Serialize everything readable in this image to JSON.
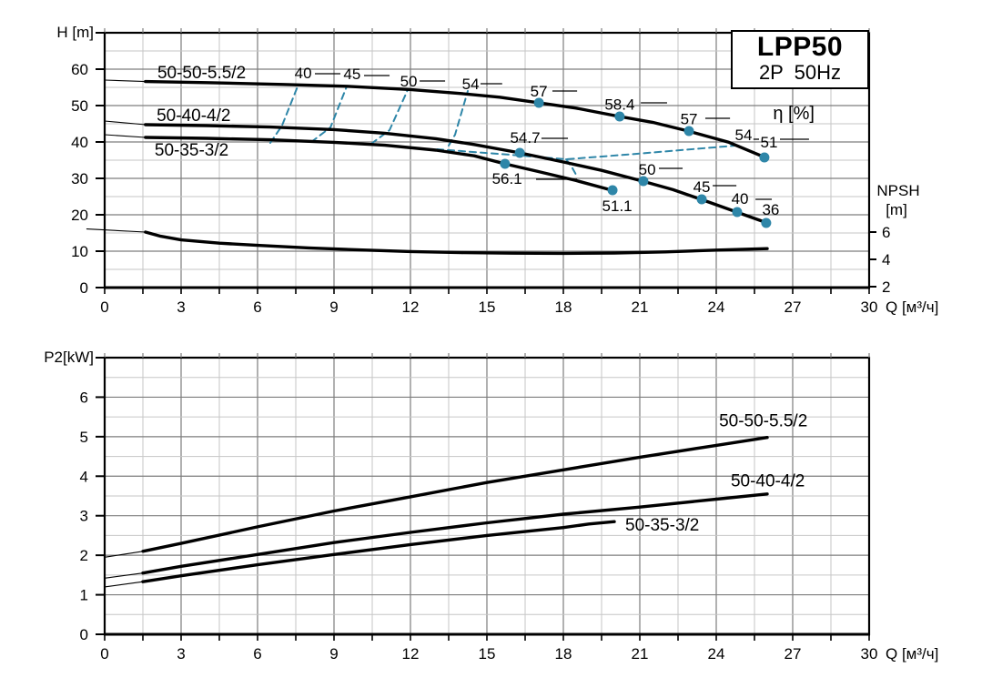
{
  "colors": {
    "accent": "#2e86a8",
    "grid_minor": "#c6c6c6",
    "grid_major": "#7d7d7d",
    "curve": "#000000"
  },
  "title_box": {
    "model": "LPP50",
    "spec": "2P  50Hz"
  },
  "chart_data": [
    {
      "type": "line",
      "name": "head-npsh-chart",
      "ylabel": "H [m]",
      "xlabel": "Q [м³/ч]",
      "xlim": [
        0,
        30
      ],
      "ylim": [
        0,
        70
      ],
      "x_major": 3,
      "x_minor": 1.5,
      "y_major": 10,
      "y_minor": 5,
      "x_tick_labels": [
        "0",
        "3",
        "6",
        "9",
        "12",
        "15",
        "18",
        "21",
        "24",
        "27",
        "30"
      ],
      "y_tick_labels": [
        "0",
        "10",
        "20",
        "30",
        "40",
        "50",
        "60"
      ],
      "grid": true,
      "series": [
        {
          "name": "50-50-5.5/2",
          "thin": [
            [
              0,
              57
            ],
            [
              1.6,
              56.6
            ]
          ],
          "points": [
            [
              1.6,
              56.6
            ],
            [
              4,
              56.3
            ],
            [
              7,
              55.8
            ],
            [
              9.5,
              55.3
            ],
            [
              12,
              54.4
            ],
            [
              14,
              53.3
            ],
            [
              15.5,
              52.3
            ],
            [
              17,
              50.8
            ],
            [
              18.5,
              49.3
            ],
            [
              20.2,
              47
            ],
            [
              21.5,
              45.4
            ],
            [
              22.9,
              43
            ],
            [
              24.5,
              39.9
            ],
            [
              25.9,
              35.8
            ]
          ]
        },
        {
          "name": "50-40-4/2",
          "thin": [
            [
              0,
              45.75
            ],
            [
              1.6,
              44.75
            ]
          ],
          "points": [
            [
              1.6,
              44.75
            ],
            [
              4,
              44.5
            ],
            [
              6.5,
              44.1
            ],
            [
              9,
              43.4
            ],
            [
              11,
              42.4
            ],
            [
              13,
              40.9
            ],
            [
              14.5,
              39.3
            ],
            [
              16.3,
              37
            ],
            [
              18,
              34.5
            ],
            [
              19.5,
              32.2
            ],
            [
              21.1,
              29.25
            ],
            [
              22.3,
              26.9
            ],
            [
              23.4,
              24.25
            ],
            [
              24.8,
              20.75
            ],
            [
              26,
              17.75
            ]
          ]
        },
        {
          "name": "50-35-3/2",
          "thin": [
            [
              0,
              42
            ],
            [
              1.6,
              41.25
            ]
          ],
          "points": [
            [
              1.6,
              41.25
            ],
            [
              4,
              41
            ],
            [
              6.5,
              40.6
            ],
            [
              9,
              39.9
            ],
            [
              11,
              39.1
            ],
            [
              13,
              37.75
            ],
            [
              14.5,
              36.2
            ],
            [
              15.7,
              34
            ],
            [
              17,
              31.9
            ],
            [
              18.5,
              29.4
            ],
            [
              19.9,
              26.75
            ]
          ]
        },
        {
          "name": "NPSH",
          "thin": [
            [
              -0.7,
              16.1
            ],
            [
              1.6,
              15.25
            ]
          ],
          "points": [
            [
              1.6,
              15.25
            ],
            [
              2.2,
              14.1
            ],
            [
              3,
              13.1
            ],
            [
              4.5,
              12.2
            ],
            [
              6,
              11.6
            ],
            [
              8,
              10.9
            ],
            [
              10,
              10.35
            ],
            [
              12,
              9.9
            ],
            [
              14,
              9.6
            ],
            [
              16,
              9.45
            ],
            [
              18,
              9.4
            ],
            [
              20,
              9.5
            ],
            [
              22,
              9.8
            ],
            [
              24,
              10.3
            ],
            [
              26,
              10.7
            ]
          ]
        }
      ],
      "series_labels": [
        {
          "text": "50-50-5.5/2",
          "q": 2.07,
          "v": 59.25
        },
        {
          "text": "50-40-4/2",
          "q": 2.04,
          "v": 47.5
        },
        {
          "text": "50-35-3/2",
          "q": 1.96,
          "v": 38
        }
      ],
      "efficiency": {
        "dots": [
          {
            "q": 17.04,
            "v": 50.75
          },
          {
            "q": 20.21,
            "v": 47
          },
          {
            "q": 22.93,
            "v": 43
          },
          {
            "q": 25.89,
            "v": 35.75
          },
          {
            "q": 16.29,
            "v": 37
          },
          {
            "q": 21.14,
            "v": 29.25
          },
          {
            "q": 23.43,
            "v": 24.25
          },
          {
            "q": 24.82,
            "v": 20.75
          },
          {
            "q": 25.96,
            "v": 17.75
          },
          {
            "q": 15.71,
            "v": 34
          },
          {
            "q": 19.93,
            "v": 26.75
          }
        ],
        "labels": [
          {
            "text": "40",
            "q": 7.79,
            "v": 59
          },
          {
            "text": "45",
            "q": 9.71,
            "v": 58.75
          },
          {
            "text": "50",
            "q": 11.93,
            "v": 56.75
          },
          {
            "text": "54",
            "q": 14.36,
            "v": 56
          },
          {
            "text": "57",
            "q": 17.04,
            "v": 54
          },
          {
            "text": "58.4",
            "q": 20.21,
            "v": 50.4
          },
          {
            "text": "57",
            "q": 22.93,
            "v": 46.4
          },
          {
            "text": "54",
            "q": 25.07,
            "v": 42
          },
          {
            "text": "51",
            "q": 26.07,
            "v": 40
          },
          {
            "text": "54.7",
            "q": 16.5,
            "v": 41.25
          },
          {
            "text": "56.1",
            "q": 15.79,
            "v": 30
          },
          {
            "text": "51.1",
            "q": 20.11,
            "v": 22.5
          },
          {
            "text": "50",
            "q": 21.29,
            "v": 32.5
          },
          {
            "text": "45",
            "q": 23.43,
            "v": 27.75
          },
          {
            "text": "40",
            "q": 24.93,
            "v": 24.5
          },
          {
            "text": "36",
            "q": 26.14,
            "v": 21.5
          },
          {
            "text": "η [%]",
            "q": 27.04,
            "v": 48,
            "size": 20
          }
        ],
        "iso_lines": [
          [
            [
              6.5,
              39.75
            ],
            [
              6.96,
              44.5
            ],
            [
              7.57,
              55.25
            ]
          ],
          [
            [
              8.11,
              40
            ],
            [
              8.86,
              44
            ],
            [
              9.5,
              55.25
            ]
          ],
          [
            [
              10.46,
              39.5
            ],
            [
              11.18,
              43.25
            ],
            [
              11.89,
              54.25
            ]
          ],
          [
            [
              13.5,
              39
            ],
            [
              13.75,
              42
            ],
            [
              14.25,
              54
            ]
          ],
          [
            [
              13.04,
              38
            ],
            [
              15.89,
              36.5
            ],
            [
              18.11,
              35.25
            ],
            [
              20.89,
              36.75
            ],
            [
              24.75,
              39
            ]
          ],
          [
            [
              18.11,
              35.25
            ],
            [
              18.36,
              32.75
            ],
            [
              18.5,
              31
            ]
          ]
        ],
        "leaders": [
          [
            8.25,
            9.25,
            58.75
          ],
          [
            10.18,
            11.18,
            58.25
          ],
          [
            12.36,
            13.36,
            56.75
          ],
          [
            14.75,
            15.6,
            56
          ],
          [
            17.57,
            18.54,
            54
          ],
          [
            21.04,
            22.07,
            50.75
          ],
          [
            23.57,
            24.54,
            46.5
          ],
          [
            25.46,
            25.68,
            40.75
          ],
          [
            26.5,
            27.64,
            40.75
          ],
          [
            17.14,
            18.18,
            41
          ],
          [
            16.93,
            18.54,
            29.75
          ],
          [
            21.75,
            22.68,
            32.75
          ],
          [
            23.86,
            24.79,
            28
          ],
          [
            25.54,
            26.18,
            24.25
          ]
        ]
      },
      "right_axis": {
        "title": "NPSH",
        "unit": "[m]",
        "ticks": [
          {
            "label": "6",
            "v": 15.25
          },
          {
            "label": "4",
            "v": 7.75
          },
          {
            "label": "2",
            "v": 0.25
          }
        ]
      }
    },
    {
      "type": "line",
      "name": "power-chart",
      "ylabel": "P2[kW]",
      "xlabel": "Q [м³/ч]",
      "xlim": [
        0,
        30
      ],
      "ylim": [
        0,
        7
      ],
      "x_major": 3,
      "x_minor": 1.5,
      "y_major": 1,
      "y_minor": 0.5,
      "x_tick_labels": [
        "0",
        "3",
        "6",
        "9",
        "12",
        "15",
        "18",
        "21",
        "24",
        "27",
        "30"
      ],
      "y_tick_labels": [
        "0",
        "1",
        "2",
        "3",
        "4",
        "5",
        "6"
      ],
      "grid": true,
      "series": [
        {
          "name": "50-50-5.5/2",
          "thin": [
            [
              0,
              1.95
            ],
            [
              1.5,
              2.1
            ]
          ],
          "points": [
            [
              1.5,
              2.1
            ],
            [
              3,
              2.3
            ],
            [
              6,
              2.72
            ],
            [
              9,
              3.12
            ],
            [
              12,
              3.48
            ],
            [
              15,
              3.84
            ],
            [
              18,
              4.16
            ],
            [
              21,
              4.48
            ],
            [
              24,
              4.78
            ],
            [
              26,
              4.98
            ]
          ]
        },
        {
          "name": "50-40-4/2",
          "thin": [
            [
              0,
              1.42
            ],
            [
              1.5,
              1.55
            ]
          ],
          "points": [
            [
              1.5,
              1.55
            ],
            [
              3,
              1.72
            ],
            [
              6,
              2.02
            ],
            [
              9,
              2.32
            ],
            [
              12,
              2.58
            ],
            [
              15,
              2.82
            ],
            [
              18,
              3.04
            ],
            [
              21,
              3.22
            ],
            [
              24,
              3.42
            ],
            [
              26,
              3.55
            ]
          ]
        },
        {
          "name": "50-35-3/2",
          "thin": [
            [
              0,
              1.2
            ],
            [
              1.5,
              1.33
            ]
          ],
          "points": [
            [
              1.5,
              1.33
            ],
            [
              3,
              1.48
            ],
            [
              6,
              1.76
            ],
            [
              9,
              2.02
            ],
            [
              12,
              2.27
            ],
            [
              15,
              2.5
            ],
            [
              18,
              2.7
            ],
            [
              19,
              2.79
            ],
            [
              20,
              2.85
            ]
          ]
        }
      ],
      "series_labels": [
        {
          "text": "50-50-5.5/2",
          "q": 24.11,
          "v": 5.42
        },
        {
          "text": "50-40-4/2",
          "q": 24.57,
          "v": 3.9
        },
        {
          "text": "50-35-3/2",
          "q": 20.43,
          "v": 2.79
        }
      ]
    }
  ]
}
